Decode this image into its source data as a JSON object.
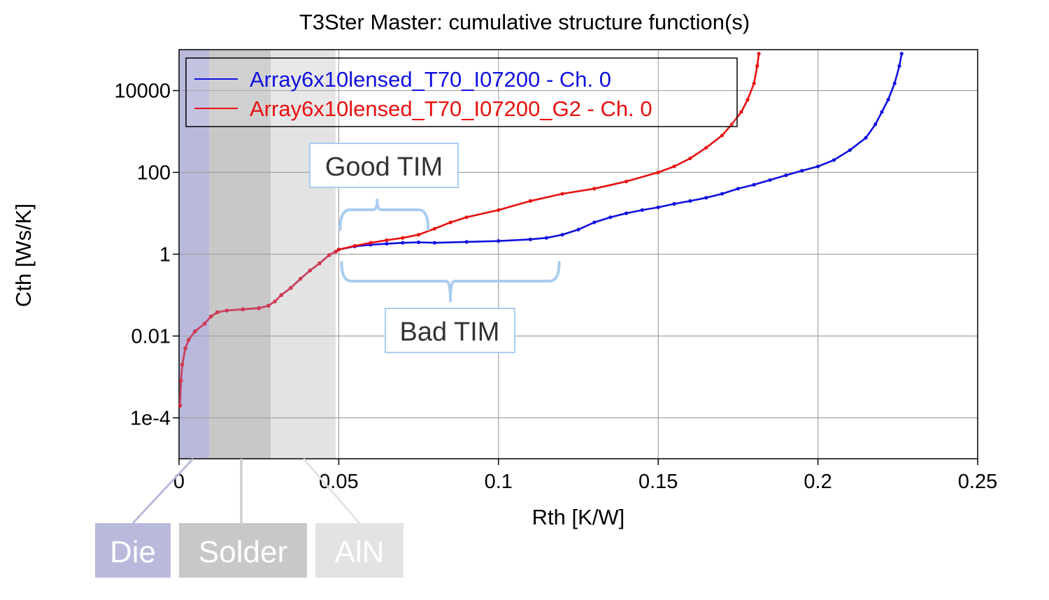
{
  "chart_data": {
    "type": "line",
    "title": "T3Ster Master: cumulative structure function(s)",
    "xlabel": "Rth  [K/W]",
    "ylabel": "Cth  [Ws/K]",
    "xlim": [
      0,
      0.25
    ],
    "ylim": [
      1e-05,
      100000
    ],
    "y_scale": "log",
    "grid": true,
    "legend_position": "top-left",
    "x_ticks": [
      {
        "value": 0,
        "label": "0"
      },
      {
        "value": 0.05,
        "label": "0.05"
      },
      {
        "value": 0.1,
        "label": "0.1"
      },
      {
        "value": 0.15,
        "label": "0.15"
      },
      {
        "value": 0.2,
        "label": "0.2"
      },
      {
        "value": 0.25,
        "label": "0.25"
      }
    ],
    "y_ticks": [
      {
        "value": 0.0001,
        "label": "1e-4"
      },
      {
        "value": 0.01,
        "label": "0.01"
      },
      {
        "value": 1,
        "label": "1"
      },
      {
        "value": 100,
        "label": "100"
      },
      {
        "value": 10000,
        "label": "10000"
      }
    ],
    "regions": [
      {
        "label": "Die",
        "x_start": 0,
        "x_end": 0.0095,
        "color": "#b9b9dc"
      },
      {
        "label": "Solder",
        "x_start": 0.0095,
        "x_end": 0.0287,
        "color": "#c8c8c8"
      },
      {
        "label": "AlN",
        "x_start": 0.0287,
        "x_end": 0.049,
        "color": "#e3e3e3"
      }
    ],
    "series": [
      {
        "name": "Array6x10lensed_T70_I07200 - Ch. 0",
        "color": "#1010e0",
        "x": [
          0.0003,
          0.0006,
          0.001,
          0.002,
          0.003,
          0.005,
          0.008,
          0.01,
          0.012,
          0.015,
          0.02,
          0.025,
          0.028,
          0.03,
          0.032,
          0.035,
          0.038,
          0.041,
          0.044,
          0.047,
          0.049,
          0.05,
          0.055,
          0.06,
          0.065,
          0.07,
          0.075,
          0.08,
          0.09,
          0.1,
          0.11,
          0.115,
          0.12,
          0.125,
          0.13,
          0.135,
          0.14,
          0.145,
          0.15,
          0.155,
          0.16,
          0.165,
          0.17,
          0.175,
          0.18,
          0.185,
          0.19,
          0.195,
          0.2,
          0.205,
          0.21,
          0.215,
          0.218,
          0.22,
          0.222,
          0.224,
          0.2255,
          0.2262
        ],
        "y": [
          0.0002,
          0.0008,
          0.002,
          0.005,
          0.008,
          0.013,
          0.02,
          0.03,
          0.038,
          0.042,
          0.045,
          0.048,
          0.055,
          0.07,
          0.1,
          0.15,
          0.25,
          0.4,
          0.6,
          0.95,
          1.15,
          1.3,
          1.55,
          1.7,
          1.8,
          1.9,
          1.95,
          1.9,
          2.0,
          2.1,
          2.3,
          2.5,
          3.0,
          4.0,
          6.0,
          8.0,
          10.0,
          12.0,
          14.0,
          17.0,
          20.0,
          24.0,
          30.0,
          40.0,
          50.0,
          65.0,
          85.0,
          110.0,
          140.0,
          200.0,
          350.0,
          700.0,
          1500.0,
          3000.0,
          6000.0,
          15000.0,
          40000.0,
          80000.0
        ]
      },
      {
        "name": "Array6x10lensed_T70_I07200_G2 - Ch. 0",
        "color": "#e81010",
        "x": [
          0.0003,
          0.0006,
          0.001,
          0.002,
          0.003,
          0.005,
          0.008,
          0.01,
          0.012,
          0.015,
          0.02,
          0.025,
          0.028,
          0.03,
          0.032,
          0.035,
          0.038,
          0.041,
          0.044,
          0.047,
          0.049,
          0.05,
          0.055,
          0.06,
          0.065,
          0.07,
          0.075,
          0.08,
          0.085,
          0.09,
          0.1,
          0.11,
          0.12,
          0.13,
          0.14,
          0.15,
          0.155,
          0.16,
          0.165,
          0.17,
          0.173,
          0.176,
          0.178,
          0.18,
          0.181,
          0.1815
        ],
        "y": [
          0.0002,
          0.0008,
          0.002,
          0.005,
          0.008,
          0.013,
          0.02,
          0.03,
          0.038,
          0.042,
          0.045,
          0.048,
          0.055,
          0.07,
          0.1,
          0.15,
          0.25,
          0.4,
          0.6,
          0.95,
          1.15,
          1.3,
          1.6,
          1.9,
          2.2,
          2.5,
          3.0,
          4.2,
          6.0,
          8.0,
          12.0,
          20.0,
          30.0,
          40.0,
          60.0,
          100.0,
          140.0,
          220.0,
          400.0,
          800.0,
          1500.0,
          3000.0,
          6000.0,
          15000.0,
          40000.0,
          80000.0
        ]
      }
    ],
    "annotations": [
      {
        "label": "Good TIM",
        "x_start": 0.05,
        "x_end": 0.078,
        "target_y": 2.5
      },
      {
        "label": "Bad TIM",
        "x_start": 0.05,
        "x_end": 0.119,
        "target_y": 1.2
      }
    ]
  }
}
